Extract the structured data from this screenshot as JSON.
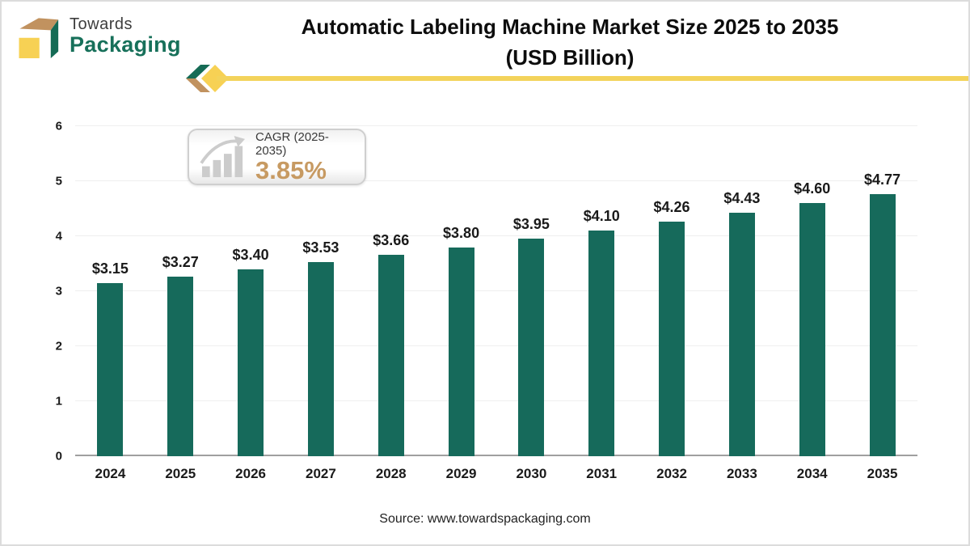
{
  "brand": {
    "name_top": "Towards",
    "name_bottom": "Packaging",
    "cube_colors": {
      "top": "#c1925f",
      "front": "#f7d154",
      "side": "#156b55"
    }
  },
  "header": {
    "title_line1": "Automatic Labeling Machine Market Size 2025 to 2035",
    "title_line2": "(USD Billion)"
  },
  "ribbon": {
    "arrow_green": "#156b55",
    "arrow_tan": "#c1925f",
    "diamond_yellow": "#f7d154",
    "line_yellow": "#f3d35b"
  },
  "cagr_badge": {
    "label": "CAGR (2025-2035)",
    "value": "3.85%",
    "value_color": "#c79a62",
    "icon": "growth-chart-icon"
  },
  "chart_data": {
    "type": "bar",
    "title": "Automatic Labeling Machine Market Size 2025 to 2035 (USD Billion)",
    "xlabel": "",
    "ylabel": "",
    "categories": [
      "2024",
      "2025",
      "2026",
      "2027",
      "2028",
      "2029",
      "2030",
      "2031",
      "2032",
      "2033",
      "2034",
      "2035"
    ],
    "values": [
      3.15,
      3.27,
      3.4,
      3.53,
      3.66,
      3.8,
      3.95,
      4.1,
      4.26,
      4.43,
      4.6,
      4.77
    ],
    "data_labels": [
      "$3.15",
      "$3.27",
      "$3.40",
      "$3.53",
      "$3.66",
      "$3.80",
      "$3.95",
      "$4.10",
      "$4.26",
      "$4.43",
      "$4.60",
      "$4.77"
    ],
    "ylim": [
      0,
      6
    ],
    "yticks": [
      0,
      1,
      2,
      3,
      4,
      5,
      6
    ],
    "grid": true,
    "legend": false,
    "bar_color": "#166a5b"
  },
  "footer": {
    "source": "Source: www.towardspackaging.com"
  }
}
